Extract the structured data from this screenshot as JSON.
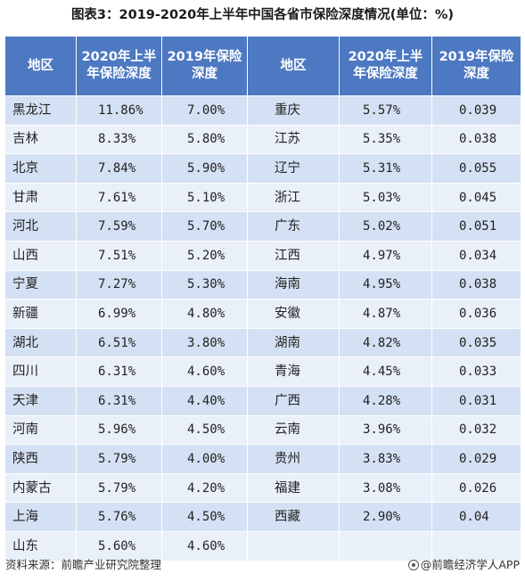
{
  "title": "图表3：2019-2020年上半年中国各省市保险深度情况(单位：%)",
  "headers": [
    "地区",
    "2020年上半年保险深度",
    "2019年保险深度",
    "地区",
    "2020年上半年保险深度",
    "2019年保险深度"
  ],
  "rows": [
    [
      "黑龙江",
      "11.86%",
      "7.00%",
      "重庆",
      "5.57%",
      "0.039"
    ],
    [
      "吉林",
      "8.33%",
      "5.80%",
      "江苏",
      "5.35%",
      "0.038"
    ],
    [
      "北京",
      "7.84%",
      "5.90%",
      "辽宁",
      "5.31%",
      "0.055"
    ],
    [
      "甘肃",
      "7.61%",
      "5.10%",
      "浙江",
      "5.03%",
      "0.045"
    ],
    [
      "河北",
      "7.59%",
      "5.70%",
      "广东",
      "5.02%",
      "0.051"
    ],
    [
      "山西",
      "7.51%",
      "5.20%",
      "江西",
      "4.97%",
      "0.034"
    ],
    [
      "宁夏",
      "7.27%",
      "5.30%",
      "海南",
      "4.95%",
      "0.038"
    ],
    [
      "新疆",
      "6.99%",
      "4.80%",
      "安徽",
      "4.87%",
      "0.036"
    ],
    [
      "湖北",
      "6.51%",
      "3.80%",
      "湖南",
      "4.82%",
      "0.035"
    ],
    [
      "四川",
      "6.31%",
      "4.60%",
      "青海",
      "4.45%",
      "0.033"
    ],
    [
      "天津",
      "6.31%",
      "4.40%",
      "广西",
      "4.28%",
      "0.031"
    ],
    [
      "河南",
      "5.96%",
      "4.50%",
      "云南",
      "3.96%",
      "0.032"
    ],
    [
      "陕西",
      "5.79%",
      "4.00%",
      "贵州",
      "3.83%",
      "0.029"
    ],
    [
      "内蒙古",
      "5.79%",
      "4.20%",
      "福建",
      "3.08%",
      "0.026"
    ],
    [
      "上海",
      "5.76%",
      "4.50%",
      "西藏",
      "2.90%",
      "0.04"
    ],
    [
      "山东",
      "5.60%",
      "4.60%",
      "",
      "",
      ""
    ]
  ],
  "footer": {
    "source": "资料来源：前瞻产业研究院整理",
    "brand": "@前瞻经济学人APP"
  }
}
